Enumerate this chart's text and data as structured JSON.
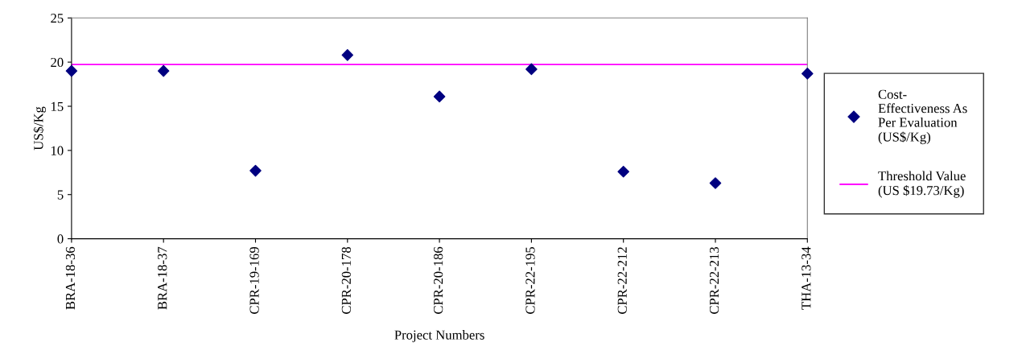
{
  "chart_data": {
    "type": "scatter",
    "xlabel": "Project Numbers",
    "ylabel": "US$/Kg",
    "categories": [
      "BRA-18-36",
      "BRA-18-37",
      "CPR-19-169",
      "CPR-20-178",
      "CPR-20-186",
      "CPR-22-195",
      "CPR-22-212",
      "CPR-22-213",
      "THA-13-34"
    ],
    "series": [
      {
        "name": "Cost-\nEffectiveness As\nPer Evaluation\n(US$/Kg)",
        "color": "#000080",
        "values": [
          19.0,
          19.0,
          7.7,
          20.8,
          16.1,
          19.2,
          7.6,
          6.3,
          18.7
        ]
      }
    ],
    "ref_lines": [
      {
        "axis": "y",
        "value": 19.73,
        "label": "Threshold Value\n(US $19.73/Kg)",
        "color": "#ff00ff",
        "line_style": "solid"
      }
    ],
    "ylim": [
      0,
      25
    ],
    "yticks": [
      0,
      5,
      10,
      15,
      20,
      25
    ],
    "marker": "diamond",
    "grid": false,
    "legend": "right"
  }
}
